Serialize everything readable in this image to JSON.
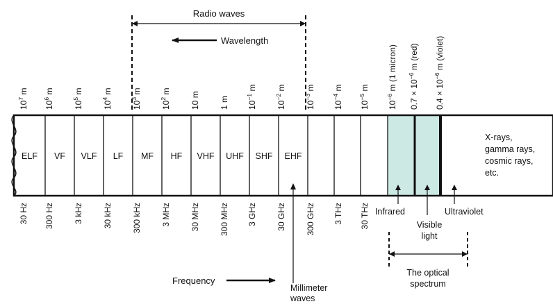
{
  "radio": {
    "title": "Radio waves",
    "wavelength_label": "Wavelength",
    "frequency_label": "Frequency",
    "millimeter_label": [
      "Millimeter",
      "waves"
    ]
  },
  "bands": [
    "ELF",
    "VF",
    "VLF",
    "LF",
    "MF",
    "HF",
    "VHF",
    "UHF",
    "SHF",
    "EHF"
  ],
  "wavelength_ticks": [
    {
      "base": "10",
      "exp": "7",
      "unit": "m"
    },
    {
      "base": "10",
      "exp": "6",
      "unit": "m"
    },
    {
      "base": "10",
      "exp": "5",
      "unit": "m"
    },
    {
      "base": "10",
      "exp": "4",
      "unit": "m"
    },
    {
      "base": "10",
      "exp": "3",
      "unit": "m"
    },
    {
      "base": "10",
      "exp": "2",
      "unit": "m"
    },
    {
      "base": "10",
      "exp": "",
      "unit": "m"
    },
    {
      "base": "1",
      "exp": "",
      "unit": "m"
    },
    {
      "base": "10",
      "exp": "−1",
      "unit": "m"
    },
    {
      "base": "10",
      "exp": "−2",
      "unit": "m"
    },
    {
      "base": "10",
      "exp": "−3",
      "unit": "m"
    },
    {
      "base": "10",
      "exp": "−4",
      "unit": "m"
    },
    {
      "base": "10",
      "exp": "−5",
      "unit": "m"
    }
  ],
  "optical_wavelength_ticks": [
    {
      "pre": "",
      "base": "10",
      "exp": "−6",
      "unit": "m (1 micron)"
    },
    {
      "pre": "0.7 × ",
      "base": "10",
      "exp": "−6",
      "unit": "m (red)"
    },
    {
      "pre": "0.4 × ",
      "base": "10",
      "exp": "−6",
      "unit": "m (violet)"
    }
  ],
  "frequency_ticks": [
    "30 Hz",
    "300 Hz",
    "3 kHz",
    "30 kHz",
    "300 kHz",
    "3 MHz",
    "30 MHz",
    "300 MHz",
    "3 GHz",
    "30 GHz",
    "300 GHz",
    "3 THz",
    "30 THz"
  ],
  "beyond_label": [
    "X-rays,",
    "gamma rays,",
    "cosmic rays,",
    "etc."
  ],
  "optical": {
    "infrared": "Infrared",
    "visible": [
      "Visible",
      "light"
    ],
    "ultraviolet": "Ultraviolet",
    "spectrum_label": [
      "The optical",
      "spectrum"
    ],
    "visible_color": "#cde9e4"
  }
}
